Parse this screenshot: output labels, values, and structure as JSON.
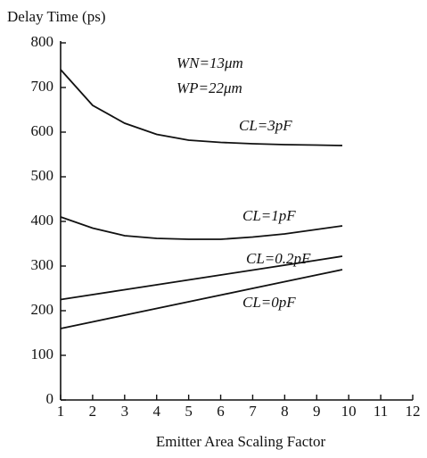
{
  "chart_data": {
    "type": "line",
    "title": "Delay Time (ps)",
    "x_label": "Emitter Area Scaling Factor",
    "annotations": [
      "WN=13μm",
      "WP=22μm"
    ],
    "x": [
      1,
      2,
      3,
      4,
      5,
      6,
      7,
      8,
      9,
      9.8
    ],
    "series": [
      {
        "name": "CL=3pF",
        "color": "#111111",
        "values": [
          740,
          660,
          620,
          595,
          582,
          577,
          574,
          572,
          571,
          570
        ]
      },
      {
        "name": "CL=1pF",
        "color": "#111111",
        "values": [
          410,
          385,
          368,
          362,
          360,
          360,
          365,
          372,
          382,
          390
        ]
      },
      {
        "name": "CL=0.2pF",
        "color": "#111111",
        "values": [
          225,
          236,
          247,
          258,
          269,
          280,
          291,
          302,
          313,
          322
        ]
      },
      {
        "name": "CL=0pF",
        "color": "#111111",
        "values": [
          160,
          175,
          190,
          205,
          220,
          235,
          250,
          265,
          280,
          292
        ]
      }
    ],
    "xlim": [
      1,
      12
    ],
    "xticks": [
      1,
      2,
      3,
      4,
      5,
      6,
      7,
      8,
      9,
      10,
      11,
      12
    ],
    "ylim": [
      0,
      800
    ],
    "yticks": [
      0,
      100,
      200,
      300,
      400,
      500,
      600,
      700,
      800
    ]
  }
}
